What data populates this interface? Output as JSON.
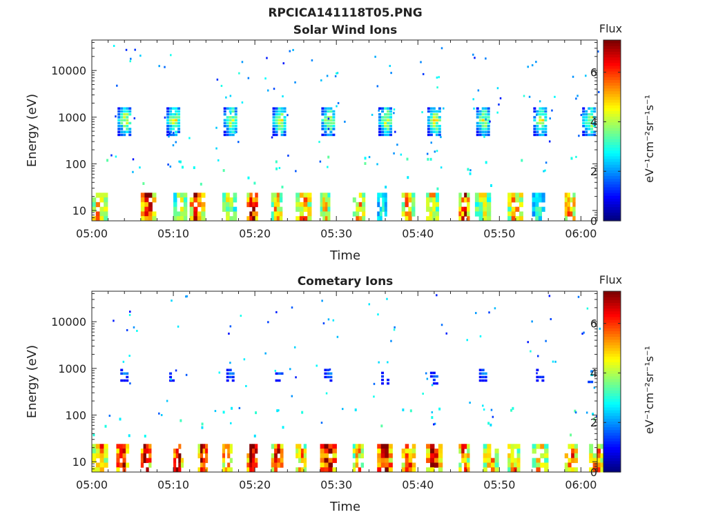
{
  "figure": {
    "filename": "RPCICA141118T05.PNG"
  },
  "chart_data": [
    {
      "type": "heatmap",
      "title": "Solar Wind Ions",
      "xlabel": "Time",
      "ylabel": "Energy (eV)",
      "xticks": [
        "05:00",
        "05:10",
        "05:20",
        "05:30",
        "05:40",
        "05:50",
        "06:00"
      ],
      "xlim": [
        "05:00",
        "06:02"
      ],
      "yscale": "log",
      "ylim": [
        6,
        45000
      ],
      "yticks": [
        {
          "value": 10,
          "label": "10"
        },
        {
          "value": 100,
          "label": "100"
        },
        {
          "value": 1000,
          "label": "1000"
        },
        {
          "value": 10000,
          "label": "10000"
        }
      ],
      "colorbar": {
        "title": "Flux",
        "unit_label": "eV⁻¹cm⁻²sr⁻¹s⁻¹",
        "ticks": [
          "0",
          "2",
          "4",
          "6"
        ],
        "range": [
          0,
          7.3
        ],
        "colormap": "jet"
      },
      "bursts": [
        {
          "time": "05:04",
          "energy": 800,
          "level": 4
        },
        {
          "time": "05:10",
          "energy": 800,
          "level": 4
        },
        {
          "time": "05:17",
          "energy": 800,
          "level": 4
        },
        {
          "time": "05:23",
          "energy": 800,
          "level": 4
        },
        {
          "time": "05:29",
          "energy": 800,
          "level": 4
        },
        {
          "time": "05:36",
          "energy": 800,
          "level": 4
        },
        {
          "time": "05:42",
          "energy": 800,
          "level": 4
        },
        {
          "time": "05:48",
          "energy": 800,
          "level": 4
        },
        {
          "time": "05:55",
          "energy": 800,
          "level": 4
        },
        {
          "time": "06:01",
          "energy": 800,
          "level": 4
        }
      ],
      "low_energy_bands": [
        {
          "time": "05:00",
          "level": 5
        },
        {
          "time": "05:06",
          "level": 6.5
        },
        {
          "time": "05:10",
          "level": 4
        },
        {
          "time": "05:12",
          "level": 6
        },
        {
          "time": "05:16",
          "level": 4
        },
        {
          "time": "05:19",
          "level": 6.5
        },
        {
          "time": "05:22",
          "level": 5
        },
        {
          "time": "05:25",
          "level": 5
        },
        {
          "time": "05:28",
          "level": 4.5
        },
        {
          "time": "05:32",
          "level": 5
        },
        {
          "time": "05:35",
          "level": 3
        },
        {
          "time": "05:38",
          "level": 5
        },
        {
          "time": "05:41",
          "level": 4.5
        },
        {
          "time": "05:45",
          "level": 6
        },
        {
          "time": "05:47",
          "level": 4
        },
        {
          "time": "05:51",
          "level": 5
        },
        {
          "time": "05:54",
          "level": 3
        },
        {
          "time": "05:58",
          "level": 5.5
        }
      ]
    },
    {
      "type": "heatmap",
      "title": "Cometary Ions",
      "xlabel": "Time",
      "ylabel": "Energy (eV)",
      "xticks": [
        "05:00",
        "05:10",
        "05:20",
        "05:30",
        "05:40",
        "05:50",
        "06:00"
      ],
      "xlim": [
        "05:00",
        "06:02"
      ],
      "yscale": "log",
      "ylim": [
        6,
        45000
      ],
      "yticks": [
        {
          "value": 10,
          "label": "10"
        },
        {
          "value": 100,
          "label": "100"
        },
        {
          "value": 1000,
          "label": "1000"
        },
        {
          "value": 10000,
          "label": "10000"
        }
      ],
      "colorbar": {
        "title": "Flux",
        "unit_label": "eV⁻¹cm⁻²sr⁻¹s⁻¹",
        "ticks": [
          "0",
          "2",
          "4",
          "6"
        ],
        "range": [
          0,
          7.3
        ],
        "colormap": "jet"
      },
      "bursts": [
        {
          "time": "05:04",
          "energy": 750,
          "level": 1.8
        },
        {
          "time": "05:10",
          "energy": 750,
          "level": 1.8
        },
        {
          "time": "05:17",
          "energy": 750,
          "level": 1.8
        },
        {
          "time": "05:23",
          "energy": 750,
          "level": 1.5
        },
        {
          "time": "05:29",
          "energy": 750,
          "level": 1.8
        },
        {
          "time": "05:36",
          "energy": 650,
          "level": 1.8
        },
        {
          "time": "05:42",
          "energy": 650,
          "level": 1.5
        },
        {
          "time": "05:48",
          "energy": 750,
          "level": 1.8
        },
        {
          "time": "05:55",
          "energy": 750,
          "level": 1.8
        },
        {
          "time": "06:01",
          "energy": 700,
          "level": 2.5
        }
      ],
      "low_energy_bands": [
        {
          "time": "05:00",
          "level": 5.5
        },
        {
          "time": "05:03",
          "level": 6.5
        },
        {
          "time": "05:06",
          "level": 6.5
        },
        {
          "time": "05:10",
          "level": 6.5
        },
        {
          "time": "05:13",
          "level": 6.5
        },
        {
          "time": "05:16",
          "level": 6
        },
        {
          "time": "05:19",
          "level": 7
        },
        {
          "time": "05:22",
          "level": 6
        },
        {
          "time": "05:25",
          "level": 5
        },
        {
          "time": "05:28",
          "level": 6.5
        },
        {
          "time": "05:32",
          "level": 5
        },
        {
          "time": "05:35",
          "level": 6.5
        },
        {
          "time": "05:38",
          "level": 5.5
        },
        {
          "time": "05:41",
          "level": 6
        },
        {
          "time": "05:45",
          "level": 5.5
        },
        {
          "time": "05:48",
          "level": 5
        },
        {
          "time": "05:51",
          "level": 5
        },
        {
          "time": "05:54",
          "level": 5
        },
        {
          "time": "05:58",
          "level": 5.5
        },
        {
          "time": "06:01",
          "level": 5
        }
      ]
    }
  ]
}
